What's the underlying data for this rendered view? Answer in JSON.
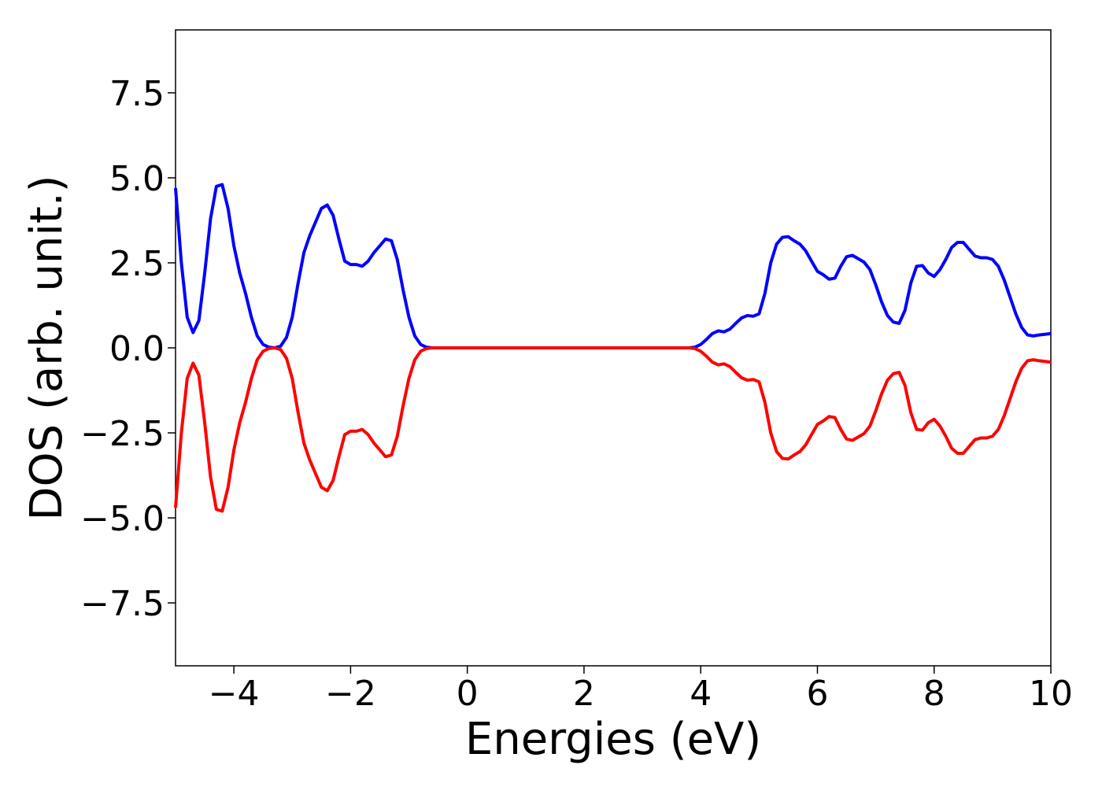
{
  "chart_data": {
    "type": "line",
    "xlabel": "Energies (eV)",
    "ylabel": "DOS (arb. unit.)",
    "x": [
      -5.0,
      -4.9,
      -4.8,
      -4.7,
      -4.6,
      -4.5,
      -4.4,
      -4.3,
      -4.2,
      -4.1,
      -4.0,
      -3.9,
      -3.8,
      -3.7,
      -3.6,
      -3.5,
      -3.4,
      -3.3,
      -3.2,
      -3.1,
      -3.0,
      -2.9,
      -2.8,
      -2.7,
      -2.6,
      -2.5,
      -2.4,
      -2.3,
      -2.2,
      -2.1,
      -2.0,
      -1.9,
      -1.8,
      -1.7,
      -1.6,
      -1.5,
      -1.4,
      -1.3,
      -1.2,
      -1.1,
      -1.0,
      -0.9,
      -0.8,
      -0.7,
      -0.6,
      3.8,
      3.9,
      4.0,
      4.1,
      4.2,
      4.3,
      4.4,
      4.5,
      4.6,
      4.7,
      4.8,
      4.9,
      5.0,
      5.1,
      5.2,
      5.3,
      5.4,
      5.5,
      5.6,
      5.7,
      5.8,
      5.9,
      6.0,
      6.1,
      6.2,
      6.3,
      6.4,
      6.5,
      6.6,
      6.7,
      6.8,
      6.9,
      7.0,
      7.1,
      7.2,
      7.3,
      7.4,
      7.5,
      7.6,
      7.7,
      7.8,
      7.9,
      8.0,
      8.1,
      8.2,
      8.3,
      8.4,
      8.5,
      8.6,
      8.7,
      8.8,
      8.9,
      9.0,
      9.1,
      9.2,
      9.3,
      9.4,
      9.5,
      9.6,
      9.7,
      9.8,
      9.9,
      10.0
    ],
    "series": [
      {
        "color": "#0000ff",
        "values": [
          4.7,
          2.5,
          0.9,
          0.45,
          0.8,
          2.2,
          3.8,
          4.75,
          4.8,
          4.1,
          3.0,
          2.2,
          1.6,
          0.9,
          0.35,
          0.1,
          0.02,
          0,
          0.05,
          0.3,
          0.9,
          1.9,
          2.8,
          3.3,
          3.7,
          4.1,
          4.2,
          3.9,
          3.2,
          2.55,
          2.45,
          2.45,
          2.4,
          2.55,
          2.8,
          3.0,
          3.2,
          3.15,
          2.6,
          1.7,
          0.9,
          0.35,
          0.1,
          0.02,
          0,
          0,
          0.02,
          0.1,
          0.25,
          0.42,
          0.5,
          0.47,
          0.55,
          0.72,
          0.88,
          0.95,
          0.93,
          1.0,
          1.6,
          2.5,
          3.05,
          3.25,
          3.27,
          3.15,
          3.05,
          2.85,
          2.55,
          2.25,
          2.15,
          2.02,
          2.05,
          2.4,
          2.68,
          2.72,
          2.62,
          2.52,
          2.3,
          1.85,
          1.35,
          0.95,
          0.76,
          0.72,
          1.1,
          1.9,
          2.4,
          2.42,
          2.2,
          2.1,
          2.3,
          2.6,
          2.95,
          3.1,
          3.1,
          2.9,
          2.7,
          2.65,
          2.65,
          2.6,
          2.4,
          2.0,
          1.5,
          1.0,
          0.6,
          0.38,
          0.35,
          0.38,
          0.4,
          0.42
        ]
      },
      {
        "color": "#ff0000",
        "values": [
          -4.7,
          -2.5,
          -0.9,
          -0.45,
          -0.8,
          -2.2,
          -3.8,
          -4.75,
          -4.8,
          -4.1,
          -3.0,
          -2.2,
          -1.6,
          -0.9,
          -0.35,
          -0.1,
          -0.02,
          0,
          -0.05,
          -0.3,
          -0.9,
          -1.9,
          -2.8,
          -3.3,
          -3.7,
          -4.1,
          -4.2,
          -3.9,
          -3.2,
          -2.55,
          -2.45,
          -2.45,
          -2.4,
          -2.55,
          -2.8,
          -3.0,
          -3.2,
          -3.15,
          -2.6,
          -1.7,
          -0.9,
          -0.35,
          -0.1,
          -0.02,
          0,
          0,
          -0.02,
          -0.1,
          -0.25,
          -0.42,
          -0.5,
          -0.47,
          -0.55,
          -0.72,
          -0.88,
          -0.95,
          -0.93,
          -1.0,
          -1.6,
          -2.5,
          -3.05,
          -3.25,
          -3.27,
          -3.15,
          -3.05,
          -2.85,
          -2.55,
          -2.25,
          -2.15,
          -2.02,
          -2.05,
          -2.4,
          -2.68,
          -2.72,
          -2.62,
          -2.52,
          -2.3,
          -1.85,
          -1.35,
          -0.95,
          -0.76,
          -0.72,
          -1.1,
          -1.9,
          -2.4,
          -2.42,
          -2.2,
          -2.1,
          -2.3,
          -2.6,
          -2.95,
          -3.1,
          -3.1,
          -2.9,
          -2.7,
          -2.65,
          -2.65,
          -2.6,
          -2.4,
          -2.0,
          -1.5,
          -1.0,
          -0.6,
          -0.38,
          -0.35,
          -0.38,
          -0.4,
          -0.42
        ]
      }
    ],
    "xlim": [
      -5,
      10
    ],
    "xticks": [
      {
        "value": -4,
        "label": "−4"
      },
      {
        "value": -2,
        "label": "−2"
      },
      0,
      2,
      4,
      6,
      8,
      10
    ],
    "ylim": [
      -9.35,
      9.35
    ],
    "yticks": [
      {
        "value": -7.5,
        "label": "−7.5"
      },
      {
        "value": -5,
        "label": "−5.0"
      },
      {
        "value": -2.5,
        "label": "−2.5"
      },
      {
        "value": 0,
        "label": "0.0"
      },
      2.5,
      {
        "value": 5,
        "label": "5.0"
      },
      7.5
    ],
    "grid": false
  }
}
